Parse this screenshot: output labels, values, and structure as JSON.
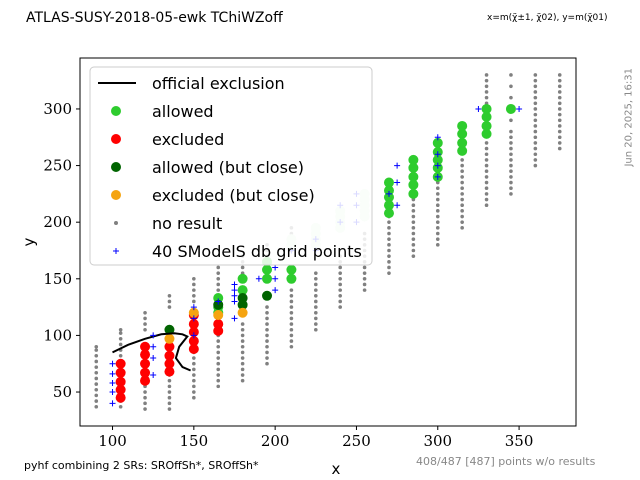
{
  "header": {
    "title": "ATLAS-SUSY-2018-05-ewk  TChiWZoff",
    "subtitle": "x=m(χ̃±1, χ̃02), y=m(χ̃01)"
  },
  "side": {
    "timestamp": "Jun 20, 2025, 16:31"
  },
  "footer": {
    "combination_note": "pyhf combining 2 SRs: SROffSh*, SROffSh*",
    "points_note": "408/487 [487] points w/o results"
  },
  "colors": {
    "allowed": "#2ecc2e",
    "excluded": "#ff0000",
    "allowed_close": "#006400",
    "excluded_close": "#f5a410",
    "no_result": "#808080",
    "grid_points": "#0000ff",
    "official": "#000000",
    "faint_allowed": "#d9f5d9"
  },
  "chart_data": {
    "type": "scatter",
    "xlabel": "x",
    "ylabel": "y",
    "xlim": [
      80,
      385
    ],
    "ylim": [
      20,
      345
    ],
    "xticks": [
      100,
      150,
      200,
      250,
      300,
      350
    ],
    "yticks": [
      50,
      100,
      150,
      200,
      250,
      300
    ],
    "legend_position": "top-left",
    "legend": [
      {
        "key": "official",
        "label": "official exclusion",
        "marker": "line"
      },
      {
        "key": "allowed",
        "label": "allowed",
        "marker": "dot"
      },
      {
        "key": "excluded",
        "label": "excluded",
        "marker": "dot"
      },
      {
        "key": "allowed_close",
        "label": "allowed (but close)",
        "marker": "dot"
      },
      {
        "key": "excluded_close",
        "label": "excluded (but close)",
        "marker": "dot"
      },
      {
        "key": "no_result",
        "label": "no result",
        "marker": "small-dot"
      },
      {
        "key": "grid_points",
        "label": "40 SModelS db grid points",
        "marker": "plus"
      }
    ],
    "official_exclusion": [
      [
        100,
        85
      ],
      [
        110,
        92
      ],
      [
        120,
        97
      ],
      [
        130,
        101
      ],
      [
        138,
        102
      ],
      [
        143,
        101
      ],
      [
        146,
        99
      ],
      [
        141,
        90
      ],
      [
        139,
        80
      ],
      [
        143,
        72
      ],
      [
        148,
        69
      ]
    ],
    "no_result_columns": [
      {
        "x": 90,
        "y": [
          37,
          42,
          47,
          52,
          57,
          62,
          67,
          72,
          77,
          82,
          87,
          90
        ]
      },
      {
        "x": 105,
        "y": [
          37,
          42,
          47,
          52,
          57,
          62,
          67,
          72,
          77,
          82,
          87,
          92,
          97,
          102,
          105
        ]
      },
      {
        "x": 120,
        "y": [
          35,
          40,
          45,
          50,
          55,
          105,
          110,
          115,
          120
        ]
      },
      {
        "x": 135,
        "y": [
          35,
          40,
          45,
          50,
          55,
          60,
          65,
          70,
          75,
          80,
          85,
          90,
          125,
          130,
          135
        ]
      },
      {
        "x": 150,
        "y": [
          45,
          50,
          55,
          60,
          65,
          70,
          75,
          80,
          85,
          90,
          95,
          130,
          135,
          140,
          145,
          150
        ]
      },
      {
        "x": 165,
        "y": [
          55,
          60,
          65,
          70,
          75,
          80,
          85,
          90,
          95,
          100,
          140,
          145,
          150,
          155,
          160
        ]
      },
      {
        "x": 180,
        "y": [
          60,
          65,
          70,
          75,
          80,
          85,
          90,
          95,
          100,
          105,
          110,
          150,
          155,
          160,
          165,
          170
        ]
      },
      {
        "x": 195,
        "y": [
          75,
          80,
          85,
          90,
          95,
          100,
          105,
          110,
          115,
          120,
          125,
          170,
          175,
          180
        ]
      },
      {
        "x": 210,
        "y": [
          90,
          95,
          100,
          105,
          110,
          115,
          120,
          125,
          130,
          135,
          140,
          175,
          180,
          185,
          190,
          195
        ]
      },
      {
        "x": 225,
        "y": [
          105,
          110,
          115,
          120,
          125,
          130,
          135,
          140,
          145,
          150,
          155
        ]
      },
      {
        "x": 240,
        "y": [
          125,
          130,
          135,
          140,
          145,
          150,
          155,
          160,
          165,
          170
        ]
      },
      {
        "x": 255,
        "y": [
          140,
          145,
          150,
          155,
          160,
          165,
          170,
          175,
          180,
          185,
          190
        ]
      },
      {
        "x": 270,
        "y": [
          155,
          160,
          165,
          170,
          175,
          180,
          185,
          190,
          195,
          200,
          205
        ]
      },
      {
        "x": 285,
        "y": [
          170,
          175,
          180,
          185,
          190,
          195,
          200,
          205,
          210,
          215,
          220
        ]
      },
      {
        "x": 300,
        "y": [
          180,
          185,
          190,
          195,
          200,
          205,
          210,
          215,
          220,
          225,
          230,
          235
        ]
      },
      {
        "x": 315,
        "y": [
          195,
          200,
          205,
          210,
          215,
          220,
          225,
          230,
          235,
          240,
          245,
          250,
          255
        ]
      },
      {
        "x": 330,
        "y": [
          215,
          220,
          225,
          230,
          235,
          240,
          245,
          250,
          255,
          260,
          265,
          270,
          305,
          310,
          315,
          320,
          325,
          330
        ]
      },
      {
        "x": 345,
        "y": [
          225,
          230,
          235,
          240,
          245,
          250,
          255,
          260,
          265,
          270,
          275,
          280,
          290,
          300,
          310,
          320,
          330
        ]
      },
      {
        "x": 360,
        "y": [
          250,
          255,
          260,
          265,
          270,
          275,
          280,
          285,
          290,
          295,
          300,
          305,
          310,
          315,
          320,
          325,
          330
        ]
      },
      {
        "x": 375,
        "y": [
          265,
          270,
          275,
          280,
          285,
          290,
          295,
          300,
          305,
          310,
          315,
          320,
          325,
          330
        ]
      }
    ],
    "faint_allowed": [
      [
        210,
        185
      ],
      [
        210,
        180
      ],
      [
        225,
        195
      ],
      [
        225,
        190
      ],
      [
        225,
        185
      ],
      [
        225,
        180
      ],
      [
        240,
        210
      ],
      [
        240,
        205
      ],
      [
        240,
        200
      ],
      [
        240,
        195
      ],
      [
        255,
        225
      ],
      [
        255,
        220
      ],
      [
        255,
        215
      ],
      [
        255,
        210
      ],
      [
        255,
        205
      ]
    ],
    "allowed": [
      [
        165,
        120
      ],
      [
        165,
        125
      ],
      [
        165,
        133
      ],
      [
        180,
        150
      ],
      [
        180,
        140
      ],
      [
        195,
        165
      ],
      [
        195,
        158
      ],
      [
        195,
        150
      ],
      [
        210,
        158
      ],
      [
        210,
        150
      ],
      [
        270,
        235
      ],
      [
        270,
        228
      ],
      [
        270,
        222
      ],
      [
        270,
        215
      ],
      [
        270,
        208
      ],
      [
        285,
        255
      ],
      [
        285,
        248
      ],
      [
        285,
        240
      ],
      [
        285,
        233
      ],
      [
        285,
        225
      ],
      [
        300,
        270
      ],
      [
        300,
        262
      ],
      [
        300,
        255
      ],
      [
        300,
        248
      ],
      [
        300,
        240
      ],
      [
        315,
        285
      ],
      [
        315,
        278
      ],
      [
        315,
        270
      ],
      [
        315,
        263
      ],
      [
        330,
        300
      ],
      [
        330,
        293
      ],
      [
        330,
        285
      ],
      [
        330,
        278
      ],
      [
        345,
        300
      ]
    ],
    "excluded": [
      [
        105,
        75
      ],
      [
        105,
        67
      ],
      [
        105,
        59
      ],
      [
        105,
        52
      ],
      [
        105,
        45
      ],
      [
        120,
        90
      ],
      [
        120,
        83
      ],
      [
        120,
        75
      ],
      [
        120,
        67
      ],
      [
        120,
        60
      ],
      [
        135,
        90
      ],
      [
        135,
        82
      ],
      [
        135,
        75
      ],
      [
        135,
        68
      ],
      [
        150,
        118
      ],
      [
        150,
        110
      ],
      [
        150,
        103
      ],
      [
        150,
        95
      ],
      [
        150,
        88
      ],
      [
        165,
        110
      ],
      [
        165,
        104
      ]
    ],
    "allowed_close": [
      [
        135,
        105
      ],
      [
        165,
        127
      ],
      [
        180,
        133
      ],
      [
        180,
        127
      ],
      [
        195,
        135
      ]
    ],
    "excluded_close": [
      [
        135,
        97
      ],
      [
        150,
        120
      ],
      [
        165,
        118
      ],
      [
        180,
        120
      ]
    ],
    "grid_points": [
      [
        100,
        75
      ],
      [
        100,
        66
      ],
      [
        100,
        58
      ],
      [
        100,
        50
      ],
      [
        100,
        40
      ],
      [
        125,
        100
      ],
      [
        125,
        90
      ],
      [
        125,
        80
      ],
      [
        125,
        65
      ],
      [
        150,
        125
      ],
      [
        150,
        115
      ],
      [
        150,
        100
      ],
      [
        165,
        130
      ],
      [
        175,
        145
      ],
      [
        175,
        140
      ],
      [
        175,
        135
      ],
      [
        175,
        130
      ],
      [
        175,
        115
      ],
      [
        190,
        150
      ],
      [
        200,
        160
      ],
      [
        200,
        150
      ],
      [
        200,
        140
      ],
      [
        240,
        215
      ],
      [
        250,
        225
      ],
      [
        250,
        215
      ],
      [
        270,
        225
      ],
      [
        275,
        250
      ],
      [
        275,
        235
      ],
      [
        275,
        215
      ],
      [
        300,
        275
      ],
      [
        300,
        260
      ],
      [
        300,
        250
      ],
      [
        300,
        240
      ],
      [
        325,
        300
      ],
      [
        350,
        300
      ],
      [
        210,
        175
      ],
      [
        225,
        185
      ],
      [
        225,
        175
      ],
      [
        240,
        200
      ],
      [
        250,
        200
      ]
    ]
  }
}
